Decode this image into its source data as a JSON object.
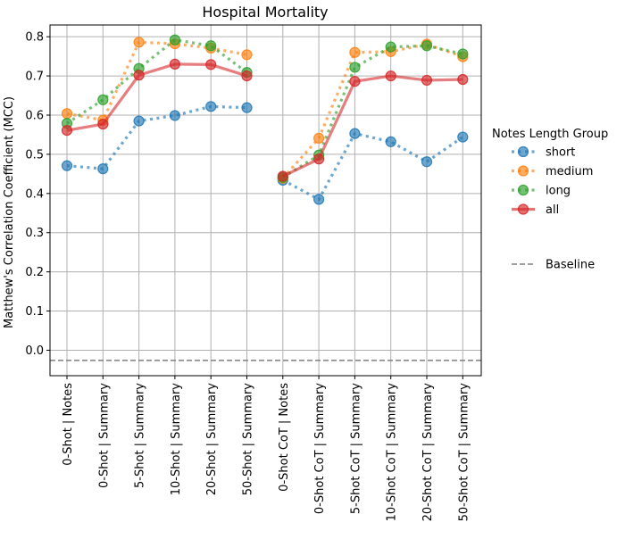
{
  "chart_data": {
    "type": "line",
    "title": "Hospital Mortality",
    "ylabel": "Matthew's Correlation Coefficient (MCC)",
    "xlabel": "",
    "ylim": [
      -0.065,
      0.83
    ],
    "yticks": [
      0.0,
      0.1,
      0.2,
      0.3,
      0.4,
      0.5,
      0.6,
      0.7,
      0.8
    ],
    "ytick_labels": [
      "0.0",
      "0.1",
      "0.2",
      "0.3",
      "0.4",
      "0.5",
      "0.6",
      "0.7",
      "0.8"
    ],
    "grid": true,
    "legend_position": "outside-right",
    "categories": [
      "0-Shot | Notes",
      "0-Shot | Summary",
      "5-Shot | Summary",
      "10-Shot | Summary",
      "20-Shot | Summary",
      "50-Shot | Summary",
      "0-Shot CoT | Notes",
      "0-Shot CoT | Summary",
      "5-Shot CoT | Summary",
      "10-Shot CoT | Summary",
      "20-Shot CoT | Summary",
      "50-Shot CoT | Summary"
    ],
    "legend_title": "Notes Length Group",
    "series": [
      {
        "name": "short",
        "color": "#1f77b4",
        "style": "dotted",
        "segments": [
          [
            0.471,
            0.463,
            0.585,
            0.599,
            0.622,
            0.619
          ],
          [
            0.434,
            0.385,
            0.553,
            0.532,
            0.481,
            0.544
          ]
        ]
      },
      {
        "name": "medium",
        "color": "#ff7f0e",
        "style": "dotted",
        "segments": [
          [
            0.604,
            0.587,
            0.786,
            0.782,
            0.771,
            0.754
          ],
          [
            0.439,
            0.541,
            0.76,
            0.762,
            0.781,
            0.749
          ]
        ]
      },
      {
        "name": "long",
        "color": "#2ca02c",
        "style": "dotted",
        "segments": [
          [
            0.579,
            0.639,
            0.719,
            0.792,
            0.777,
            0.709
          ],
          [
            0.441,
            0.498,
            0.722,
            0.774,
            0.777,
            0.756
          ]
        ]
      },
      {
        "name": "all",
        "color": "#d62728",
        "style": "solid",
        "segments": [
          [
            0.561,
            0.577,
            0.702,
            0.73,
            0.729,
            0.7
          ],
          [
            0.444,
            0.488,
            0.686,
            0.7,
            0.689,
            0.691
          ]
        ]
      }
    ],
    "baseline": {
      "label": "Baseline",
      "value": -0.026,
      "color": "#7f7f7f",
      "style": "dashed"
    }
  }
}
